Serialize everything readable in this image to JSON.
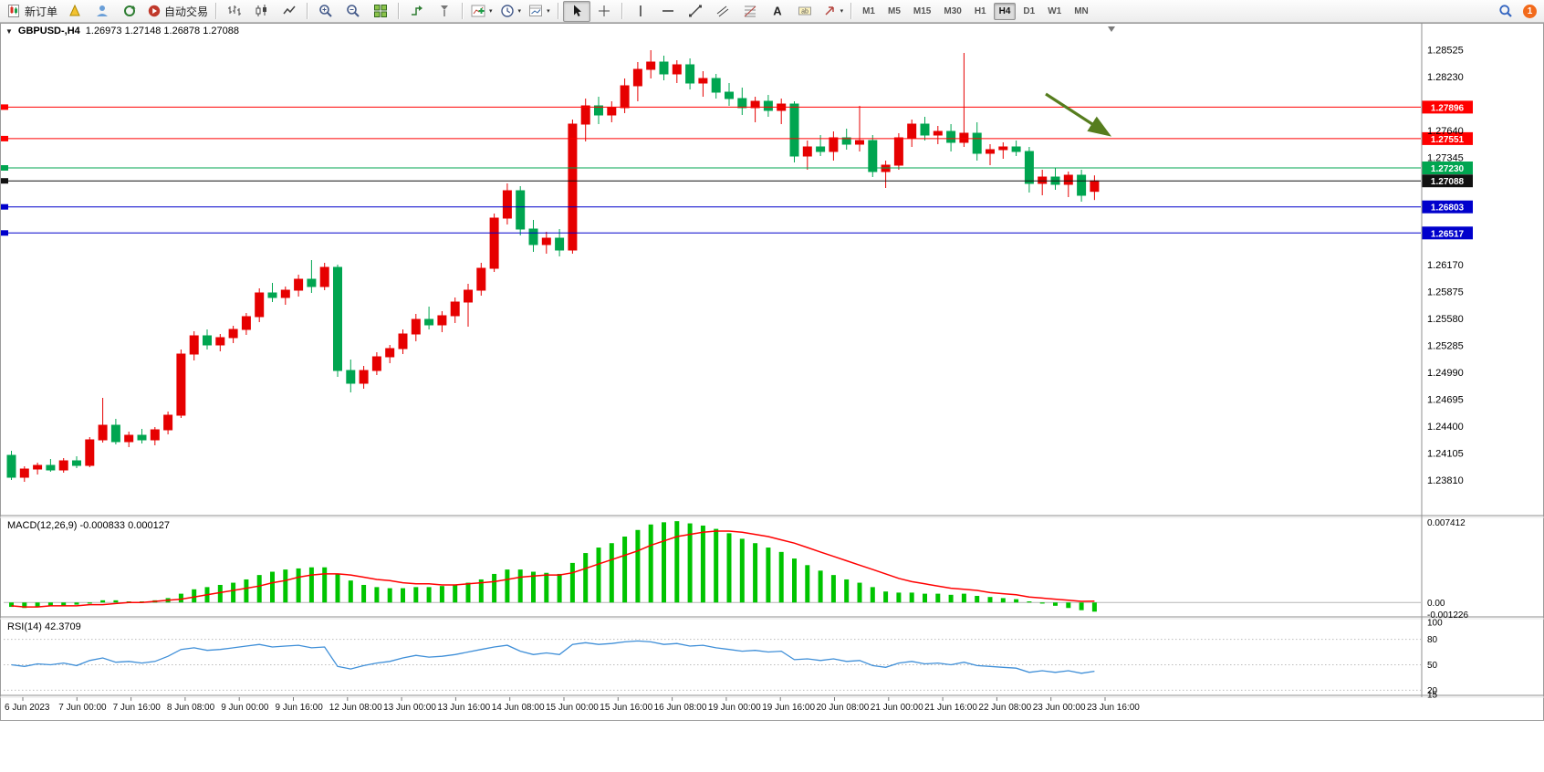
{
  "colors": {
    "bull": "#e60000",
    "bear": "#00a550",
    "macd_hist": "#00c400",
    "macd_signal": "#ff0000",
    "rsi_line": "#3f8fd8",
    "level_red": "#ff0000",
    "level_green": "#00a550",
    "level_blue": "#0000cc",
    "level_black": "#111111",
    "arrow": "#567d1e",
    "axis_text": "#000000"
  },
  "toolbar": {
    "buttons": [
      {
        "name": "new-order-button",
        "icon": "new-order",
        "label": "新订单"
      },
      {
        "name": "metaeditor-button",
        "icon": "metaeditor"
      },
      {
        "name": "profile-button",
        "icon": "profile"
      },
      {
        "name": "refresh-button",
        "icon": "refresh"
      },
      {
        "name": "autotrading-button",
        "icon": "autotrading",
        "label": "自动交易"
      },
      {
        "sep": true
      },
      {
        "name": "bar-chart-button",
        "icon": "bars"
      },
      {
        "name": "candlestick-chart-button",
        "icon": "candles"
      },
      {
        "name": "line-chart-button",
        "icon": "linechart"
      },
      {
        "sep": true
      },
      {
        "name": "zoom-in-button",
        "icon": "zoom-in"
      },
      {
        "name": "zoom-out-button",
        "icon": "zoom-out"
      },
      {
        "name": "tile-windows-button",
        "icon": "tile"
      },
      {
        "sep": true
      },
      {
        "name": "auto-scroll-button",
        "icon": "autoscroll"
      },
      {
        "name": "chart-shift-button",
        "icon": "shift"
      },
      {
        "sep": true
      },
      {
        "name": "indicators-button",
        "icon": "indicators",
        "dropdown": true
      },
      {
        "name": "periods-button",
        "icon": "periods",
        "dropdown": true
      },
      {
        "name": "templates-button",
        "icon": "templates",
        "dropdown": true
      },
      {
        "sep": true
      },
      {
        "name": "cursor-button",
        "icon": "cursor",
        "pressed": true
      },
      {
        "name": "crosshair-button",
        "icon": "crosshair"
      },
      {
        "sep": true
      },
      {
        "name": "vertical-line-button",
        "icon": "vline"
      },
      {
        "name": "horizontal-line-button",
        "icon": "hline"
      },
      {
        "name": "trendline-button",
        "icon": "trendline"
      },
      {
        "name": "equidistant-channel-button",
        "icon": "channel"
      },
      {
        "name": "fibonacci-button",
        "icon": "fibo"
      },
      {
        "name": "text-button",
        "icon": "text"
      },
      {
        "name": "text-label-button",
        "icon": "label"
      },
      {
        "name": "arrows-button",
        "icon": "arrows",
        "dropdown": true
      },
      {
        "sep": true
      }
    ],
    "timeframes": [
      "M1",
      "M5",
      "M15",
      "M30",
      "H1",
      "H4",
      "D1",
      "W1",
      "MN"
    ],
    "active_timeframe": "H4",
    "notification_count": "1"
  },
  "chart_header": {
    "symbol": "GBPUSD-,H4",
    "ohlc": "1.26973 1.27148 1.26878 1.27088"
  },
  "chart_data": {
    "type": "candlestick",
    "symbol": "GBPUSD-",
    "timeframe": "H4",
    "last_ohlc": {
      "open": 1.26973,
      "high": 1.27148,
      "low": 1.26878,
      "close": 1.27088
    },
    "price_axis_labels": [
      "1.28525",
      "1.28230",
      "1.27640",
      "1.27345",
      "1.26170",
      "1.25875",
      "1.25580",
      "1.25285",
      "1.24990",
      "1.24695",
      "1.24400",
      "1.24105",
      "1.23810"
    ],
    "levels": [
      {
        "price": 1.27896,
        "color": "red"
      },
      {
        "price": 1.27551,
        "color": "red"
      },
      {
        "price": 1.2723,
        "color": "green"
      },
      {
        "price": 1.27088,
        "color": "black"
      },
      {
        "price": 1.26803,
        "color": "blue"
      },
      {
        "price": 1.26517,
        "color": "blue"
      }
    ],
    "candles": [
      [
        1.2408,
        1.2413,
        1.2381,
        1.2384
      ],
      [
        1.2384,
        1.2396,
        1.2379,
        1.2393
      ],
      [
        1.2393,
        1.24,
        1.2387,
        1.2397
      ],
      [
        1.2397,
        1.2404,
        1.239,
        1.2392
      ],
      [
        1.2392,
        1.2405,
        1.2389,
        1.2402
      ],
      [
        1.2402,
        1.2407,
        1.2394,
        1.2397
      ],
      [
        1.2397,
        1.2428,
        1.2395,
        1.2425
      ],
      [
        1.2425,
        1.2471,
        1.2422,
        1.2441
      ],
      [
        1.2441,
        1.2448,
        1.242,
        1.2423
      ],
      [
        1.2423,
        1.2434,
        1.2417,
        1.243
      ],
      [
        1.243,
        1.2437,
        1.2421,
        1.2425
      ],
      [
        1.2425,
        1.2439,
        1.2419,
        1.2436
      ],
      [
        1.2436,
        1.2456,
        1.2431,
        1.2452
      ],
      [
        1.2452,
        1.2524,
        1.2449,
        1.2519
      ],
      [
        1.2519,
        1.2544,
        1.2512,
        1.2539
      ],
      [
        1.2539,
        1.2546,
        1.2524,
        1.2529
      ],
      [
        1.2529,
        1.2541,
        1.2522,
        1.2537
      ],
      [
        1.2537,
        1.255,
        1.2531,
        1.2546
      ],
      [
        1.2546,
        1.2564,
        1.254,
        1.256
      ],
      [
        1.256,
        1.2591,
        1.2554,
        1.2586
      ],
      [
        1.2586,
        1.2597,
        1.2576,
        1.2581
      ],
      [
        1.2581,
        1.2593,
        1.2573,
        1.2589
      ],
      [
        1.2589,
        1.2606,
        1.2582,
        1.2601
      ],
      [
        1.2601,
        1.2622,
        1.2586,
        1.2593
      ],
      [
        1.2593,
        1.2619,
        1.2589,
        1.2614
      ],
      [
        1.2614,
        1.2617,
        1.2494,
        1.2501
      ],
      [
        1.2501,
        1.2513,
        1.2477,
        1.2487
      ],
      [
        1.2487,
        1.2506,
        1.2481,
        1.2501
      ],
      [
        1.2501,
        1.2521,
        1.2496,
        1.2516
      ],
      [
        1.2516,
        1.2529,
        1.2509,
        1.2525
      ],
      [
        1.2525,
        1.2546,
        1.2519,
        1.2541
      ],
      [
        1.2541,
        1.2563,
        1.2533,
        1.2557
      ],
      [
        1.2557,
        1.2571,
        1.2546,
        1.2551
      ],
      [
        1.2551,
        1.2566,
        1.2543,
        1.2561
      ],
      [
        1.2561,
        1.2581,
        1.2553,
        1.2576
      ],
      [
        1.2576,
        1.2596,
        1.2549,
        1.2589
      ],
      [
        1.2589,
        1.2619,
        1.2583,
        1.2613
      ],
      [
        1.2613,
        1.2673,
        1.2609,
        1.2668
      ],
      [
        1.2668,
        1.2706,
        1.2661,
        1.2698
      ],
      [
        1.2698,
        1.2703,
        1.2649,
        1.2656
      ],
      [
        1.2656,
        1.2666,
        1.2631,
        1.2639
      ],
      [
        1.2639,
        1.2653,
        1.2629,
        1.2646
      ],
      [
        1.2646,
        1.2656,
        1.2626,
        1.2633
      ],
      [
        1.2633,
        1.2776,
        1.2629,
        1.2771
      ],
      [
        1.2771,
        1.2799,
        1.2752,
        1.2791
      ],
      [
        1.2791,
        1.2801,
        1.2771,
        1.2781
      ],
      [
        1.2781,
        1.2796,
        1.2773,
        1.2789
      ],
      [
        1.2789,
        1.2821,
        1.2783,
        1.2813
      ],
      [
        1.2813,
        1.2839,
        1.2796,
        1.2831
      ],
      [
        1.2831,
        1.2852,
        1.2821,
        1.2839
      ],
      [
        1.2839,
        1.2846,
        1.2819,
        1.2826
      ],
      [
        1.2826,
        1.2841,
        1.2816,
        1.2836
      ],
      [
        1.2836,
        1.2843,
        1.2809,
        1.2816
      ],
      [
        1.2816,
        1.2829,
        1.2801,
        1.2821
      ],
      [
        1.2821,
        1.2826,
        1.2799,
        1.2806
      ],
      [
        1.2806,
        1.2816,
        1.2791,
        1.2799
      ],
      [
        1.2799,
        1.2811,
        1.2781,
        1.2789
      ],
      [
        1.2789,
        1.2801,
        1.2773,
        1.2796
      ],
      [
        1.2796,
        1.2803,
        1.2779,
        1.2786
      ],
      [
        1.2786,
        1.2799,
        1.2771,
        1.2793
      ],
      [
        1.2793,
        1.2796,
        1.2729,
        1.2736
      ],
      [
        1.2736,
        1.2753,
        1.2721,
        1.2746
      ],
      [
        1.2746,
        1.2759,
        1.2736,
        1.2741
      ],
      [
        1.2741,
        1.2763,
        1.2731,
        1.2756
      ],
      [
        1.2756,
        1.2766,
        1.2743,
        1.2749
      ],
      [
        1.2749,
        1.2791,
        1.2741,
        1.2753
      ],
      [
        1.2753,
        1.2759,
        1.2713,
        1.2719
      ],
      [
        1.2719,
        1.2731,
        1.2701,
        1.2726
      ],
      [
        1.2726,
        1.2761,
        1.2721,
        1.2756
      ],
      [
        1.2756,
        1.2776,
        1.2746,
        1.2771
      ],
      [
        1.2771,
        1.2779,
        1.2753,
        1.2759
      ],
      [
        1.2759,
        1.2769,
        1.2749,
        1.2763
      ],
      [
        1.2763,
        1.2771,
        1.2741,
        1.2751
      ],
      [
        1.2751,
        1.2849,
        1.2746,
        1.2761
      ],
      [
        1.2761,
        1.2773,
        1.2731,
        1.2739
      ],
      [
        1.2739,
        1.2749,
        1.2726,
        1.2743
      ],
      [
        1.2743,
        1.2751,
        1.2733,
        1.2746
      ],
      [
        1.2746,
        1.2753,
        1.2736,
        1.2741
      ],
      [
        1.2741,
        1.2746,
        1.2696,
        1.2706
      ],
      [
        1.2706,
        1.2721,
        1.2693,
        1.2713
      ],
      [
        1.2713,
        1.2723,
        1.2699,
        1.2705
      ],
      [
        1.2705,
        1.2719,
        1.2691,
        1.2715
      ],
      [
        1.2715,
        1.2721,
        1.2686,
        1.2693
      ],
      [
        1.26973,
        1.27148,
        1.26878,
        1.27088
      ]
    ],
    "macd": {
      "label": "MACD(12,26,9) -0.000833 0.000127",
      "value": -0.000833,
      "signal_value": 0.000127,
      "axis_labels": [
        "0.007412",
        "0.00",
        "-0.001226"
      ],
      "histogram": [
        -0.0004,
        -0.0005,
        -0.0004,
        -0.0003,
        -0.0003,
        -0.0002,
        -0.0001,
        0.0002,
        0.0002,
        0.0001,
        0.0001,
        0.0002,
        0.0004,
        0.0008,
        0.0012,
        0.0014,
        0.0016,
        0.0018,
        0.0021,
        0.0025,
        0.0028,
        0.003,
        0.0031,
        0.0032,
        0.0032,
        0.0026,
        0.002,
        0.0016,
        0.0014,
        0.0013,
        0.0013,
        0.0014,
        0.0014,
        0.0015,
        0.0016,
        0.0018,
        0.0021,
        0.0026,
        0.003,
        0.003,
        0.0028,
        0.0027,
        0.0026,
        0.0036,
        0.0045,
        0.005,
        0.0054,
        0.006,
        0.0066,
        0.0071,
        0.0073,
        0.0074,
        0.0072,
        0.007,
        0.0067,
        0.0063,
        0.0058,
        0.0054,
        0.005,
        0.0046,
        0.004,
        0.0034,
        0.0029,
        0.0025,
        0.0021,
        0.0018,
        0.0014,
        0.001,
        0.0009,
        0.0009,
        0.0008,
        0.0008,
        0.0007,
        0.0008,
        0.0006,
        0.0005,
        0.0004,
        0.0003,
        0.0001,
        -0.0001,
        -0.0003,
        -0.0005,
        -0.0007,
        -0.000833
      ],
      "signal": [
        -0.0003,
        -0.0004,
        -0.0004,
        -0.0003,
        -0.0003,
        -0.0003,
        -0.0002,
        -0.0002,
        -0.0001,
        0.0,
        0.0,
        0.0001,
        0.0002,
        0.0003,
        0.0005,
        0.0007,
        0.0009,
        0.0011,
        0.0013,
        0.0015,
        0.0018,
        0.002,
        0.0023,
        0.0025,
        0.0026,
        0.0026,
        0.0025,
        0.0023,
        0.0021,
        0.002,
        0.0018,
        0.0017,
        0.0017,
        0.0016,
        0.0016,
        0.0017,
        0.0018,
        0.0019,
        0.0021,
        0.0023,
        0.0024,
        0.0025,
        0.0025,
        0.0027,
        0.0031,
        0.0035,
        0.0039,
        0.0043,
        0.0047,
        0.0052,
        0.0056,
        0.006,
        0.0062,
        0.0064,
        0.0065,
        0.0065,
        0.0064,
        0.0062,
        0.006,
        0.0057,
        0.0054,
        0.005,
        0.0046,
        0.0042,
        0.0038,
        0.0034,
        0.003,
        0.0026,
        0.0022,
        0.0019,
        0.0017,
        0.0015,
        0.0013,
        0.0012,
        0.0011,
        0.0009,
        0.0008,
        0.0007,
        0.0005,
        0.0004,
        0.0003,
        0.0002,
        0.0001,
        0.000127
      ]
    },
    "rsi": {
      "label": "RSI(14) 42.3709",
      "value": 42.3709,
      "axis_labels": [
        "100",
        "80",
        "50",
        "20",
        "15"
      ],
      "levels": [
        80,
        50,
        20
      ],
      "values": [
        50,
        48,
        51,
        50,
        52,
        49,
        55,
        58,
        53,
        54,
        52,
        54,
        60,
        68,
        70,
        67,
        68,
        70,
        72,
        74,
        71,
        72,
        73,
        70,
        71,
        48,
        45,
        49,
        52,
        54,
        58,
        61,
        59,
        60,
        62,
        65,
        68,
        71,
        73,
        66,
        62,
        64,
        62,
        74,
        76,
        74,
        75,
        77,
        78,
        77,
        74,
        75,
        72,
        73,
        70,
        68,
        66,
        67,
        65,
        66,
        56,
        57,
        55,
        57,
        54,
        55,
        49,
        47,
        52,
        54,
        51,
        52,
        50,
        53,
        49,
        48,
        47,
        46,
        41,
        43,
        41,
        43,
        40,
        42.37
      ]
    },
    "time_axis_labels": [
      "6 Jun 2023",
      "7 Jun 00:00",
      "7 Jun 16:00",
      "8 Jun 08:00",
      "9 Jun 00:00",
      "9 Jun 16:00",
      "12 Jun 08:00",
      "13 Jun 00:00",
      "13 Jun 16:00",
      "14 Jun 08:00",
      "15 Jun 00:00",
      "15 Jun 16:00",
      "16 Jun 08:00",
      "19 Jun 00:00",
      "19 Jun 16:00",
      "20 Jun 08:00",
      "21 Jun 00:00",
      "21 Jun 16:00",
      "22 Jun 08:00",
      "23 Jun 00:00",
      "23 Jun 16:00"
    ],
    "annotations": [
      {
        "name": "trend-arrow",
        "type": "arrow",
        "from": [
          1146,
          78
        ],
        "to": [
          1214,
          122
        ]
      }
    ]
  }
}
